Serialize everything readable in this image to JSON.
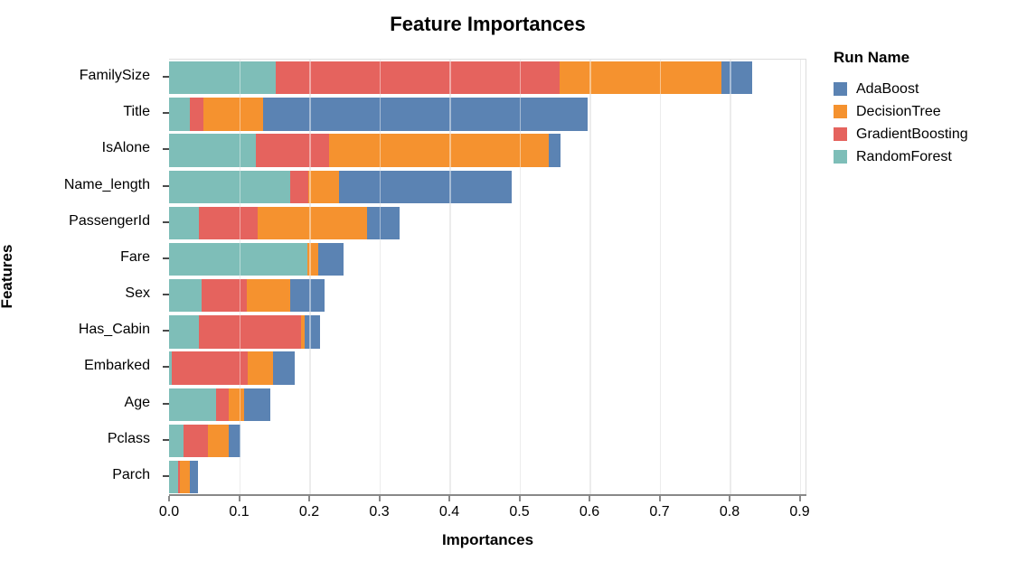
{
  "chart_data": {
    "type": "bar",
    "orientation": "horizontal",
    "stacked": true,
    "title": "Feature Importances",
    "xlabel": "Importances",
    "ylabel": "Features",
    "xlim": [
      0.0,
      0.9
    ],
    "x_ticks": [
      "0.0",
      "0.1",
      "0.2",
      "0.3",
      "0.4",
      "0.5",
      "0.6",
      "0.7",
      "0.8",
      "0.9"
    ],
    "grid": true,
    "categories": [
      "FamilySize",
      "Title",
      "IsAlone",
      "Name_length",
      "PassengerId",
      "Fare",
      "Sex",
      "Has_Cabin",
      "Embarked",
      "Age",
      "Pclass",
      "Parch"
    ],
    "series": [
      {
        "name": "RandomForest",
        "color": "#7ebeb8",
        "values": [
          0.152,
          0.03,
          0.124,
          0.173,
          0.043,
          0.198,
          0.046,
          0.043,
          0.004,
          0.067,
          0.02,
          0.013
        ]
      },
      {
        "name": "GradientBoosting",
        "color": "#e5635e",
        "values": [
          0.405,
          0.019,
          0.105,
          0.026,
          0.083,
          0.0,
          0.065,
          0.145,
          0.108,
          0.018,
          0.036,
          0.002
        ]
      },
      {
        "name": "DecisionTree",
        "color": "#f5922f",
        "values": [
          0.232,
          0.085,
          0.313,
          0.043,
          0.157,
          0.015,
          0.062,
          0.006,
          0.036,
          0.022,
          0.029,
          0.015
        ]
      },
      {
        "name": "AdaBoost",
        "color": "#5b83b3",
        "values": [
          0.043,
          0.464,
          0.017,
          0.247,
          0.046,
          0.036,
          0.049,
          0.022,
          0.032,
          0.038,
          0.017,
          0.011
        ]
      }
    ],
    "totals": [
      0.832,
      0.598,
      0.559,
      0.489,
      0.329,
      0.249,
      0.222,
      0.216,
      0.18,
      0.145,
      0.102,
      0.041
    ],
    "legend": {
      "title": "Run Name",
      "position": "right",
      "entries": [
        {
          "label": "AdaBoost",
          "color": "#5b83b3"
        },
        {
          "label": "DecisionTree",
          "color": "#f5922f"
        },
        {
          "label": "GradientBoosting",
          "color": "#e5635e"
        },
        {
          "label": "RandomForest",
          "color": "#7ebeb8"
        }
      ]
    }
  }
}
